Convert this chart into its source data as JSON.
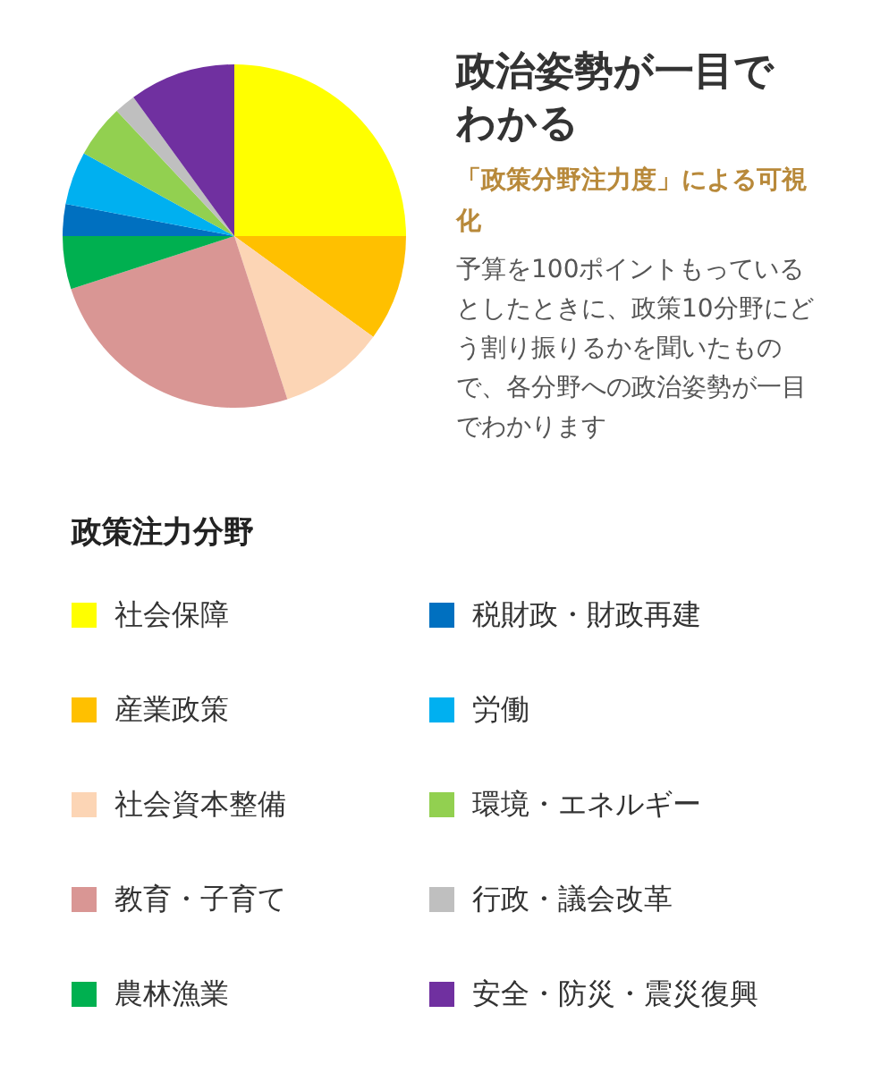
{
  "chart_data": {
    "type": "pie",
    "title": "政治姿勢が一目でわかる",
    "subtitle": "「政策分野注力度」による可視化",
    "annotations": [
      "予算を100ポイントもっているとしたときに、政策10分野にどう割り振りるかを聞いたもので、各分野への政治姿勢が一目でわかります"
    ],
    "legend_title": "政策注力分野",
    "legend": "bottom",
    "categories": [
      "社会保障",
      "産業政策",
      "社会資本整備",
      "教育・子育て",
      "農林漁業",
      "税財政・財政再建",
      "労働",
      "環境・エネルギー",
      "行政・議会改革",
      "安全・防災・震災復興"
    ],
    "values": [
      25,
      10,
      10,
      25,
      5,
      3,
      5,
      5,
      2,
      10
    ],
    "colors": [
      "#ffff00",
      "#ffc000",
      "#fcd5b5",
      "#d99694",
      "#00b050",
      "#0070c0",
      "#00b0f0",
      "#92d050",
      "#bfbfbf",
      "#7030a0"
    ]
  }
}
